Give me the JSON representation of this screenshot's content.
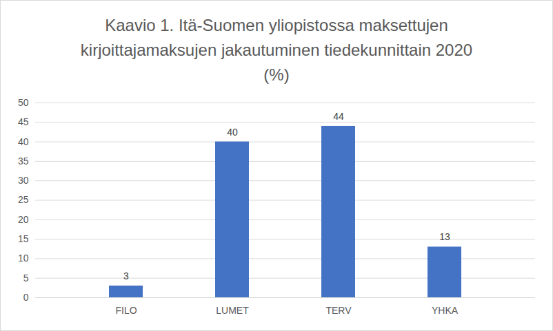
{
  "chart_data": {
    "type": "bar",
    "title": "Kaavio 1. Itä-Suomen yliopistossa maksettujen kirjoittajamaksujen jakautuminen tiedekunnittain 2020 (%)",
    "categories": [
      "FILO",
      "LUMET",
      "TERV",
      "YHKA"
    ],
    "values": [
      3,
      40,
      44,
      13
    ],
    "color": "#4472c4",
    "ylim": [
      0,
      50
    ],
    "yticks": [
      0,
      5,
      10,
      15,
      20,
      25,
      30,
      35,
      40,
      45,
      50
    ],
    "grid": true,
    "data_labels": true
  }
}
